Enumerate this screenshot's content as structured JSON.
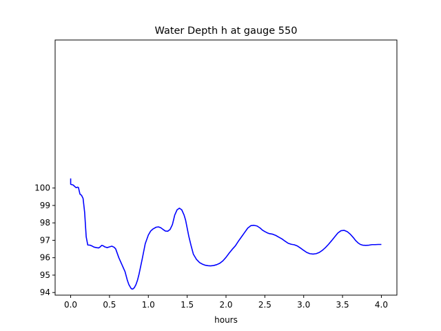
{
  "chart_data": {
    "type": "line",
    "title": "Water Depth h at gauge 550",
    "xlabel": "hours",
    "ylabel": "",
    "xlim": [
      -0.2,
      4.2
    ],
    "ylim": [
      93.85,
      108.5
    ],
    "xticks": [
      0.0,
      0.5,
      1.0,
      1.5,
      2.0,
      2.5,
      3.0,
      3.5,
      4.0
    ],
    "xtick_labels": [
      "0.0",
      "0.5",
      "1.0",
      "1.5",
      "2.0",
      "2.5",
      "3.0",
      "3.5",
      "4.0"
    ],
    "yticks": [
      94,
      95,
      96,
      97,
      98,
      99,
      100
    ],
    "ytick_labels": [
      "94",
      "95",
      "96",
      "97",
      "98",
      "99",
      "100"
    ],
    "grid": false,
    "colors": {
      "line": "#0000ff",
      "axes": "#000000",
      "background": "#ffffff"
    },
    "series": [
      {
        "x": [
          0.0,
          0.0,
          0.01,
          0.03,
          0.05,
          0.07,
          0.09,
          0.1,
          0.12,
          0.14,
          0.16,
          0.18,
          0.2,
          0.22,
          0.25,
          0.28,
          0.3,
          0.33,
          0.36,
          0.38,
          0.4,
          0.42,
          0.44,
          0.47,
          0.5,
          0.53,
          0.56,
          0.58,
          0.62,
          0.66,
          0.7,
          0.73,
          0.75,
          0.78,
          0.8,
          0.82,
          0.84,
          0.86,
          0.88,
          0.92,
          0.96,
          1.0,
          1.03,
          1.06,
          1.1,
          1.13,
          1.16,
          1.19,
          1.22,
          1.25,
          1.28,
          1.31,
          1.34,
          1.37,
          1.4,
          1.43,
          1.46,
          1.48,
          1.5,
          1.52,
          1.55,
          1.58,
          1.62,
          1.66,
          1.7,
          1.73,
          1.77,
          1.8,
          1.84,
          1.88,
          1.92,
          1.96,
          2.0,
          2.04,
          2.08,
          2.12,
          2.16,
          2.2,
          2.24,
          2.28,
          2.32,
          2.36,
          2.4,
          2.44,
          2.47,
          2.5,
          2.53,
          2.56,
          2.6,
          2.64,
          2.68,
          2.72,
          2.76,
          2.8,
          2.84,
          2.88,
          2.92,
          2.96,
          3.0,
          3.04,
          3.08,
          3.12,
          3.16,
          3.2,
          3.24,
          3.28,
          3.32,
          3.36,
          3.4,
          3.44,
          3.48,
          3.52,
          3.56,
          3.6,
          3.64,
          3.67,
          3.7,
          3.73,
          3.76,
          3.8,
          3.84,
          3.88,
          3.92,
          3.96,
          4.0
        ],
        "values": [
          100.55,
          100.22,
          100.2,
          100.18,
          100.1,
          100.02,
          100.05,
          100.03,
          99.65,
          99.58,
          99.4,
          98.6,
          97.2,
          96.73,
          96.72,
          96.66,
          96.61,
          96.58,
          96.56,
          96.62,
          96.71,
          96.68,
          96.62,
          96.58,
          96.62,
          96.66,
          96.6,
          96.5,
          96.0,
          95.6,
          95.2,
          94.7,
          94.45,
          94.22,
          94.2,
          94.28,
          94.45,
          94.7,
          95.05,
          95.9,
          96.8,
          97.3,
          97.53,
          97.65,
          97.75,
          97.77,
          97.72,
          97.62,
          97.53,
          97.52,
          97.62,
          97.9,
          98.45,
          98.75,
          98.84,
          98.75,
          98.45,
          98.15,
          97.7,
          97.25,
          96.7,
          96.2,
          95.9,
          95.72,
          95.62,
          95.57,
          95.54,
          95.53,
          95.55,
          95.6,
          95.68,
          95.82,
          96.02,
          96.26,
          96.48,
          96.68,
          96.95,
          97.2,
          97.45,
          97.7,
          97.84,
          97.86,
          97.82,
          97.7,
          97.58,
          97.5,
          97.43,
          97.38,
          97.35,
          97.28,
          97.18,
          97.08,
          96.95,
          96.83,
          96.77,
          96.74,
          96.67,
          96.55,
          96.42,
          96.3,
          96.23,
          96.21,
          96.23,
          96.3,
          96.42,
          96.58,
          96.77,
          96.98,
          97.2,
          97.42,
          97.55,
          97.57,
          97.5,
          97.35,
          97.15,
          96.98,
          96.85,
          96.76,
          96.72,
          96.71,
          96.72,
          96.75,
          96.75,
          96.76,
          96.76
        ]
      }
    ]
  }
}
